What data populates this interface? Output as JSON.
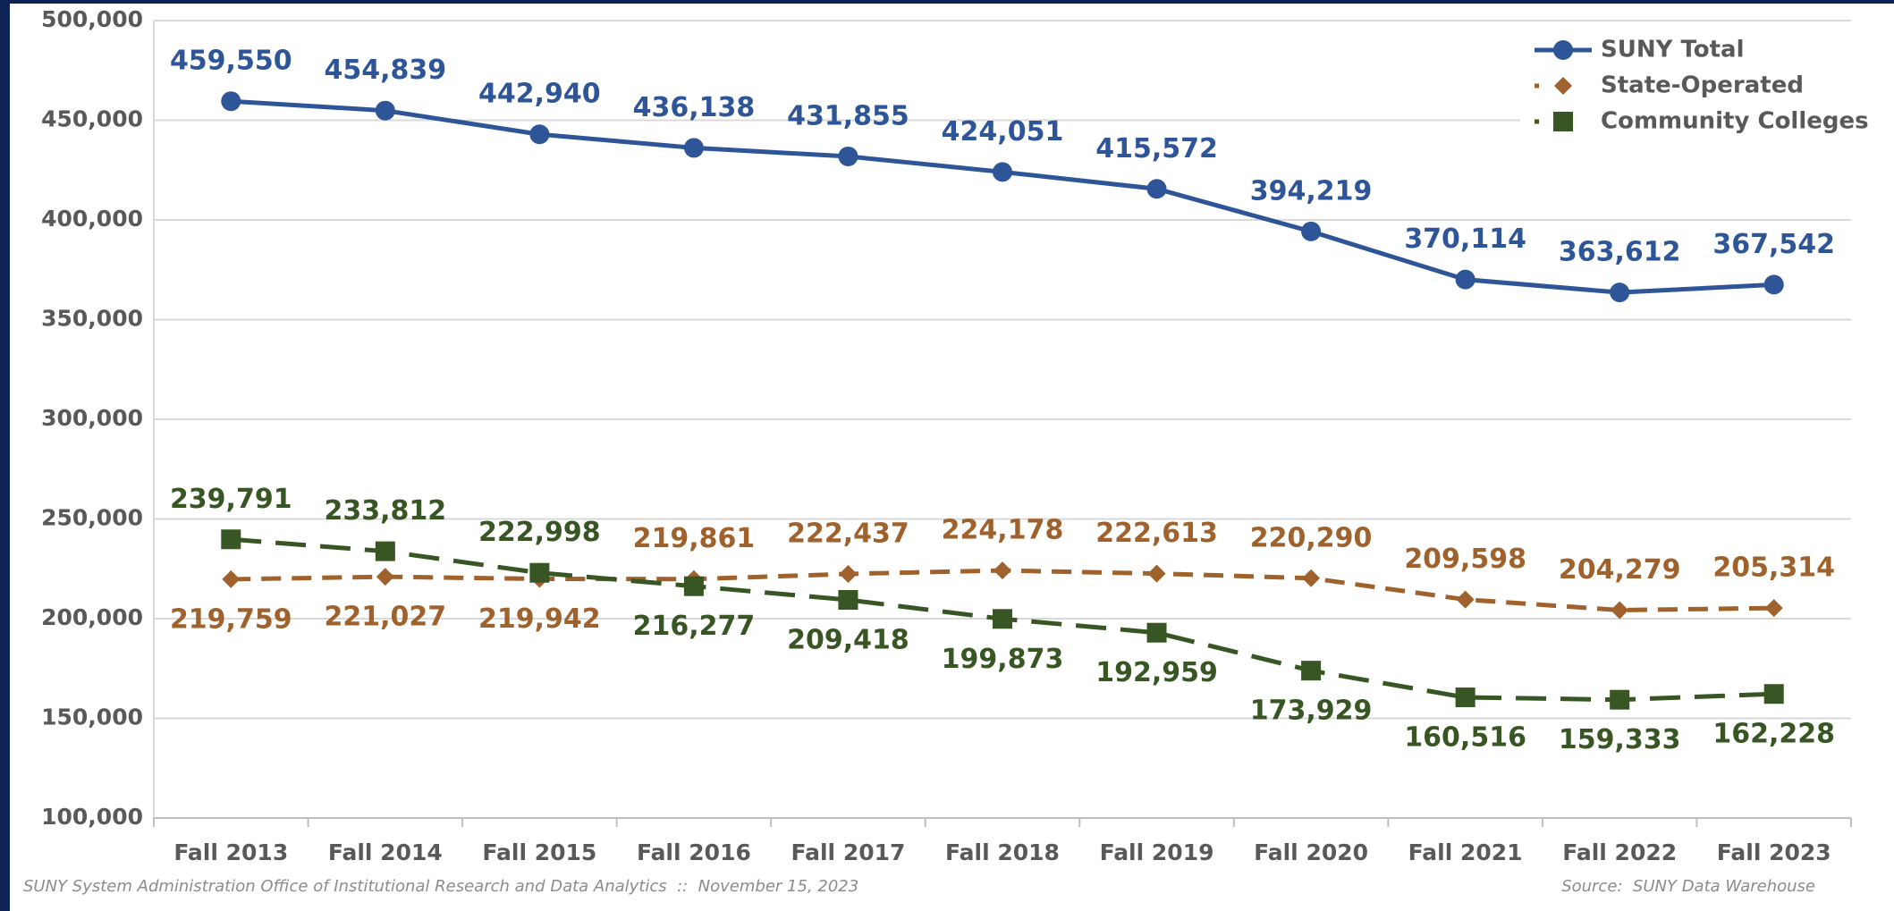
{
  "chart_data": {
    "type": "line",
    "categories": [
      "Fall 2013",
      "Fall 2014",
      "Fall 2015",
      "Fall 2016",
      "Fall 2017",
      "Fall 2018",
      "Fall 2019",
      "Fall 2020",
      "Fall 2021",
      "Fall 2022",
      "Fall 2023"
    ],
    "series": [
      {
        "name": "SUNY Total",
        "color": "#2e5597",
        "marker": "circle",
        "dash": "solid",
        "values": [
          459550,
          454839,
          442940,
          436138,
          431855,
          424051,
          415572,
          394219,
          370114,
          363612,
          367542
        ],
        "value_labels": [
          "459,550",
          "454,839",
          "442,940",
          "436,138",
          "431,855",
          "424,051",
          "415,572",
          "394,219",
          "370,114",
          "363,612",
          "367,542"
        ]
      },
      {
        "name": "State-Operated",
        "color": "#a0622d",
        "marker": "diamond",
        "dash": "dashed",
        "values": [
          219759,
          221027,
          219942,
          219861,
          222437,
          224178,
          222613,
          220290,
          209598,
          204279,
          205314
        ],
        "value_labels": [
          "219,759",
          "221,027",
          "219,942",
          "219,861",
          "222,437",
          "224,178",
          "222,613",
          "220,290",
          "209,598",
          "204,279",
          "205,314"
        ]
      },
      {
        "name": "Community Colleges",
        "color": "#375623",
        "marker": "square",
        "dash": "longdash",
        "values": [
          239791,
          233812,
          222998,
          216277,
          209418,
          199873,
          192959,
          173929,
          160516,
          159333,
          162228
        ],
        "value_labels": [
          "239,791",
          "233,812",
          "222,998",
          "216,277",
          "209,418",
          "199,873",
          "192,959",
          "173,929",
          "160,516",
          "159,333",
          "162,228"
        ]
      }
    ],
    "ylim": [
      100000,
      500000
    ],
    "yticks": [
      {
        "value": 100000,
        "label": "100,000"
      },
      {
        "value": 150000,
        "label": "150,000"
      },
      {
        "value": 200000,
        "label": "200,000"
      },
      {
        "value": 250000,
        "label": "250,000"
      },
      {
        "value": 300000,
        "label": "300,000"
      },
      {
        "value": 350000,
        "label": "350,000"
      },
      {
        "value": 400000,
        "label": "400,000"
      },
      {
        "value": 450000,
        "label": "450,000"
      },
      {
        "value": 500000,
        "label": "500,000"
      }
    ],
    "grid": true,
    "legend": "upper right",
    "footer_left": "SUNY System Administration Office of Institutional Research and Data Analytics  ::  November 15, 2023",
    "footer_right": "Source:  SUNY Data Warehouse"
  }
}
